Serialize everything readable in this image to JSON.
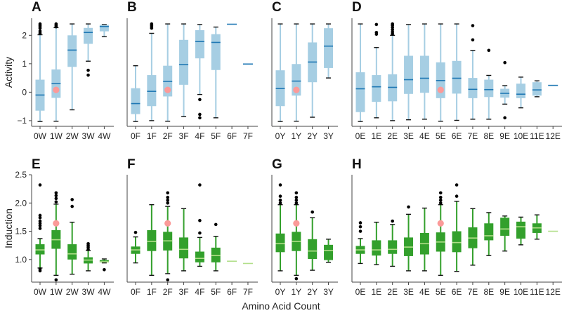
{
  "chart_data": {
    "type": "boxplot",
    "xlabel": "Amino Acid Count",
    "colors": {
      "activity_box": "#a6cee3",
      "activity_median": "#1f78b4",
      "induction_box": "#33a02c",
      "induction_median": "#b2df8a",
      "reference_point": "#fb9a99",
      "outlier": "#000000"
    },
    "rows": [
      {
        "ylabel": "Activity",
        "ylim": [
          -1.2,
          2.6
        ],
        "yticks": [
          -1,
          0,
          1,
          2
        ],
        "ytick_labels": [
          "−1",
          "0",
          "1",
          "2"
        ]
      },
      {
        "ylabel": "Induction",
        "ylim": [
          0.6,
          2.5
        ],
        "yticks": [
          1.0,
          1.5,
          2.0,
          2.5
        ],
        "ytick_labels": [
          "1.0",
          "1.5",
          "2.0",
          "2.5"
        ]
      }
    ],
    "panels": [
      {
        "label": "A",
        "row": 0,
        "reference": {
          "cat": "1W",
          "value": 0.08
        },
        "boxes": [
          {
            "cat": "0W",
            "lo": -1.03,
            "q1": -0.65,
            "med": -0.1,
            "q3": 0.44,
            "hi": 2.02,
            "out": [
              2.08,
              2.15,
              2.25,
              2.3,
              2.35,
              2.4
            ]
          },
          {
            "cat": "1W",
            "lo": -1.02,
            "q1": -0.2,
            "med": 0.3,
            "q3": 0.8,
            "hi": 2.27,
            "out": [
              2.3,
              2.35,
              2.4
            ]
          },
          {
            "cat": "2W",
            "lo": -0.62,
            "q1": 0.89,
            "med": 1.48,
            "q3": 2.0,
            "hi": 2.4,
            "out": []
          },
          {
            "cat": "3W",
            "lo": 1.09,
            "q1": 1.7,
            "med": 2.1,
            "q3": 2.26,
            "hi": 2.4,
            "out": [
              0.77,
              0.6
            ]
          },
          {
            "cat": "4W",
            "lo": 1.95,
            "q1": 2.14,
            "med": 2.31,
            "q3": 2.37,
            "hi": 2.38,
            "out": []
          }
        ]
      },
      {
        "label": "B",
        "row": 0,
        "reference": {
          "cat": "2F",
          "value": 0.08
        },
        "boxes": [
          {
            "cat": "0F",
            "lo": -1.03,
            "q1": -0.77,
            "med": -0.4,
            "q3": 0.14,
            "hi": 0.93,
            "out": []
          },
          {
            "cat": "1F",
            "lo": -1.0,
            "q1": -0.49,
            "med": 0.03,
            "q3": 0.6,
            "hi": 2.07,
            "out": [
              2.25,
              2.3,
              2.35,
              2.4
            ]
          },
          {
            "cat": "2F",
            "lo": -1.02,
            "q1": -0.15,
            "med": 0.38,
            "q3": 0.93,
            "hi": 2.4,
            "out": []
          },
          {
            "cat": "3F",
            "lo": -0.86,
            "q1": 0.26,
            "med": 0.97,
            "q3": 1.84,
            "hi": 2.4,
            "out": []
          },
          {
            "cat": "4F",
            "lo": -0.08,
            "q1": 1.19,
            "med": 1.78,
            "q3": 2.18,
            "hi": 2.38,
            "out": [
              -0.26,
              -0.78,
              -0.9
            ]
          },
          {
            "cat": "5F",
            "lo": -0.9,
            "q1": 0.78,
            "med": 1.75,
            "q3": 2.04,
            "hi": 2.29,
            "out": []
          },
          {
            "cat": "6F",
            "single": 2.39
          },
          {
            "cat": "7F",
            "single": 0.99
          }
        ]
      },
      {
        "label": "C",
        "row": 0,
        "reference": {
          "cat": "1Y",
          "value": 0.08
        },
        "boxes": [
          {
            "cat": "0Y",
            "lo": -1.03,
            "q1": -0.49,
            "med": 0.13,
            "q3": 0.77,
            "hi": 2.4,
            "out": []
          },
          {
            "cat": "1Y",
            "lo": -1.02,
            "q1": -0.12,
            "med": 0.39,
            "q3": 0.99,
            "hi": 2.4,
            "out": []
          },
          {
            "cat": "2Y",
            "lo": -0.88,
            "q1": 0.35,
            "med": 1.06,
            "q3": 1.75,
            "hi": 2.4,
            "out": []
          },
          {
            "cat": "3Y",
            "lo": 0.5,
            "q1": 0.85,
            "med": 1.62,
            "q3": 2.25,
            "hi": 2.4,
            "out": []
          }
        ]
      },
      {
        "label": "D",
        "row": 0,
        "reference": {
          "cat": "5E",
          "value": 0.08
        },
        "boxes": [
          {
            "cat": "0E",
            "lo": -1.03,
            "q1": -0.7,
            "med": 0.12,
            "q3": 0.7,
            "hi": 2.4,
            "out": []
          },
          {
            "cat": "1E",
            "lo": -0.9,
            "q1": -0.34,
            "med": 0.19,
            "q3": 0.6,
            "hi": 1.57,
            "out": [
              2.04,
              2.1,
              2.38
            ]
          },
          {
            "cat": "2E",
            "lo": -1.0,
            "q1": -0.32,
            "med": 0.17,
            "q3": 0.63,
            "hi": 2.0,
            "out": [
              2.05,
              2.12,
              2.2,
              2.28,
              2.35,
              2.4
            ]
          },
          {
            "cat": "3E",
            "lo": -0.97,
            "q1": -0.06,
            "med": 0.44,
            "q3": 1.28,
            "hi": 2.38,
            "out": []
          },
          {
            "cat": "4E",
            "lo": -0.95,
            "q1": -0.02,
            "med": 0.49,
            "q3": 1.28,
            "hi": 2.4,
            "out": []
          },
          {
            "cat": "5E",
            "lo": -1.02,
            "q1": -0.21,
            "med": 0.41,
            "q3": 1.05,
            "hi": 2.4,
            "out": []
          },
          {
            "cat": "6E",
            "lo": -0.99,
            "q1": -0.05,
            "med": 0.49,
            "q3": 1.1,
            "hi": 2.4,
            "out": []
          },
          {
            "cat": "7E",
            "lo": -0.95,
            "q1": -0.21,
            "med": 0.1,
            "q3": 0.5,
            "hi": 1.47,
            "out": [
              1.84,
              2.34
            ]
          },
          {
            "cat": "8E",
            "lo": -0.95,
            "q1": -0.17,
            "med": 0.09,
            "q3": 0.44,
            "hi": 0.59,
            "out": [
              1.47
            ]
          },
          {
            "cat": "9E",
            "lo": -0.42,
            "q1": -0.19,
            "med": -0.04,
            "q3": 0.12,
            "hi": 0.23,
            "out": [
              1.04,
              -0.9
            ]
          },
          {
            "cat": "10E",
            "lo": -0.55,
            "q1": -0.21,
            "med": -0.07,
            "q3": 0.3,
            "hi": 0.53,
            "out": []
          },
          {
            "cat": "11E",
            "lo": -0.16,
            "q1": -0.12,
            "med": 0.08,
            "q3": 0.35,
            "hi": 0.4,
            "out": []
          },
          {
            "cat": "12E",
            "single": 0.24
          }
        ]
      },
      {
        "label": "E",
        "row": 1,
        "reference": {
          "cat": "1W",
          "value": 1.64
        },
        "boxes": [
          {
            "cat": "0W",
            "lo": 0.85,
            "q1": 1.09,
            "med": 1.17,
            "q3": 1.27,
            "hi": 1.37,
            "out": [
              2.32,
              1.78,
              1.74,
              1.68,
              1.64,
              1.6,
              1.55,
              0.83,
              0.8
            ]
          },
          {
            "cat": "1W",
            "lo": 0.72,
            "q1": 1.19,
            "med": 1.35,
            "q3": 1.52,
            "hi": 1.98,
            "out": [
              2.02,
              2.08,
              2.13,
              2.18,
              0.64
            ]
          },
          {
            "cat": "2W",
            "lo": 0.74,
            "q1": 1.0,
            "med": 1.1,
            "q3": 1.27,
            "hi": 1.66,
            "out": [
              1.94,
              2.06
            ]
          },
          {
            "cat": "3W",
            "lo": 0.8,
            "q1": 0.93,
            "med": 0.99,
            "q3": 1.04,
            "hi": 1.16,
            "out": [
              1.18,
              1.22,
              1.25,
              1.28
            ]
          },
          {
            "cat": "4W",
            "lo": 0.94,
            "q1": 0.95,
            "med": 0.96,
            "q3": 0.99,
            "hi": 1.01,
            "out": [
              0.82
            ]
          }
        ]
      },
      {
        "label": "F",
        "row": 1,
        "reference": {
          "cat": "2F",
          "value": 1.64
        },
        "boxes": [
          {
            "cat": "0F",
            "lo": 0.94,
            "q1": 1.1,
            "med": 1.17,
            "q3": 1.23,
            "hi": 1.4,
            "out": [
              1.48
            ]
          },
          {
            "cat": "1F",
            "lo": 0.72,
            "q1": 1.15,
            "med": 1.32,
            "q3": 1.52,
            "hi": 1.97,
            "out": []
          },
          {
            "cat": "2F",
            "lo": 0.75,
            "q1": 1.16,
            "med": 1.33,
            "q3": 1.49,
            "hi": 1.94,
            "out": [
              2.0,
              2.05,
              2.1,
              2.18,
              0.64
            ]
          },
          {
            "cat": "3F",
            "lo": 0.8,
            "q1": 1.02,
            "med": 1.18,
            "q3": 1.39,
            "hi": 1.9,
            "out": []
          },
          {
            "cat": "4F",
            "lo": 0.88,
            "q1": 0.95,
            "med": 1.02,
            "q3": 1.14,
            "hi": 1.39,
            "out": [
              1.47,
              1.69,
              2.32
            ]
          },
          {
            "cat": "5F",
            "lo": 0.8,
            "q1": 0.95,
            "med": 1.07,
            "q3": 1.21,
            "hi": 1.41,
            "out": [
              1.62
            ]
          },
          {
            "cat": "6F",
            "single": 0.97
          },
          {
            "cat": "7F",
            "single": 0.93
          }
        ]
      },
      {
        "label": "G",
        "row": 1,
        "reference": {
          "cat": "1Y",
          "value": 1.64
        },
        "boxes": [
          {
            "cat": "0Y",
            "lo": 0.8,
            "q1": 1.13,
            "med": 1.28,
            "q3": 1.46,
            "hi": 1.97,
            "out": [
              2.0,
              2.05,
              2.12,
              2.32
            ]
          },
          {
            "cat": "1Y",
            "lo": 0.72,
            "q1": 1.15,
            "med": 1.32,
            "q3": 1.49,
            "hi": 1.97,
            "out": [
              2.0,
              2.05,
              2.1,
              2.18,
              0.66
            ]
          },
          {
            "cat": "2Y",
            "lo": 0.81,
            "q1": 1.01,
            "med": 1.15,
            "q3": 1.36,
            "hi": 1.74,
            "out": [
              1.84
            ]
          },
          {
            "cat": "3Y",
            "lo": 0.95,
            "q1": 0.99,
            "med": 1.16,
            "q3": 1.26,
            "hi": 1.36,
            "out": []
          }
        ]
      },
      {
        "label": "H",
        "row": 1,
        "reference": {
          "cat": "5E",
          "value": 1.64
        },
        "boxes": [
          {
            "cat": "0E",
            "lo": 0.93,
            "q1": 1.1,
            "med": 1.17,
            "q3": 1.24,
            "hi": 1.37,
            "out": [
              1.5,
              1.58,
              1.65
            ]
          },
          {
            "cat": "1E",
            "lo": 0.91,
            "q1": 1.07,
            "med": 1.17,
            "q3": 1.34,
            "hi": 1.66,
            "out": []
          },
          {
            "cat": "2E",
            "lo": 0.88,
            "q1": 1.1,
            "med": 1.18,
            "q3": 1.34,
            "hi": 1.62,
            "out": [
              1.68
            ]
          },
          {
            "cat": "3E",
            "lo": 0.8,
            "q1": 1.06,
            "med": 1.22,
            "q3": 1.39,
            "hi": 1.8,
            "out": [
              1.93
            ]
          },
          {
            "cat": "4E",
            "lo": 0.8,
            "q1": 1.09,
            "med": 1.28,
            "q3": 1.47,
            "hi": 1.91,
            "out": []
          },
          {
            "cat": "5E",
            "lo": 0.72,
            "q1": 1.14,
            "med": 1.31,
            "q3": 1.48,
            "hi": 1.97,
            "out": [
              2.0,
              2.05,
              2.1,
              2.18
            ]
          },
          {
            "cat": "6E",
            "lo": 0.79,
            "q1": 1.13,
            "med": 1.3,
            "q3": 1.5,
            "hi": 2.03,
            "out": [
              2.12,
              2.32
            ]
          },
          {
            "cat": "7E",
            "lo": 0.9,
            "q1": 1.2,
            "med": 1.38,
            "q3": 1.57,
            "hi": 1.9,
            "out": []
          },
          {
            "cat": "8E",
            "lo": 1.07,
            "q1": 1.34,
            "med": 1.42,
            "q3": 1.64,
            "hi": 1.83,
            "out": []
          },
          {
            "cat": "9E",
            "lo": 1.15,
            "q1": 1.42,
            "med": 1.54,
            "q3": 1.74,
            "hi": 1.77,
            "out": []
          },
          {
            "cat": "10E",
            "lo": 1.26,
            "q1": 1.37,
            "med": 1.58,
            "q3": 1.67,
            "hi": 1.75,
            "out": []
          },
          {
            "cat": "11E",
            "lo": 1.36,
            "q1": 1.47,
            "med": 1.56,
            "q3": 1.64,
            "hi": 1.79,
            "out": []
          },
          {
            "cat": "12E",
            "single": 1.5
          }
        ]
      }
    ]
  }
}
